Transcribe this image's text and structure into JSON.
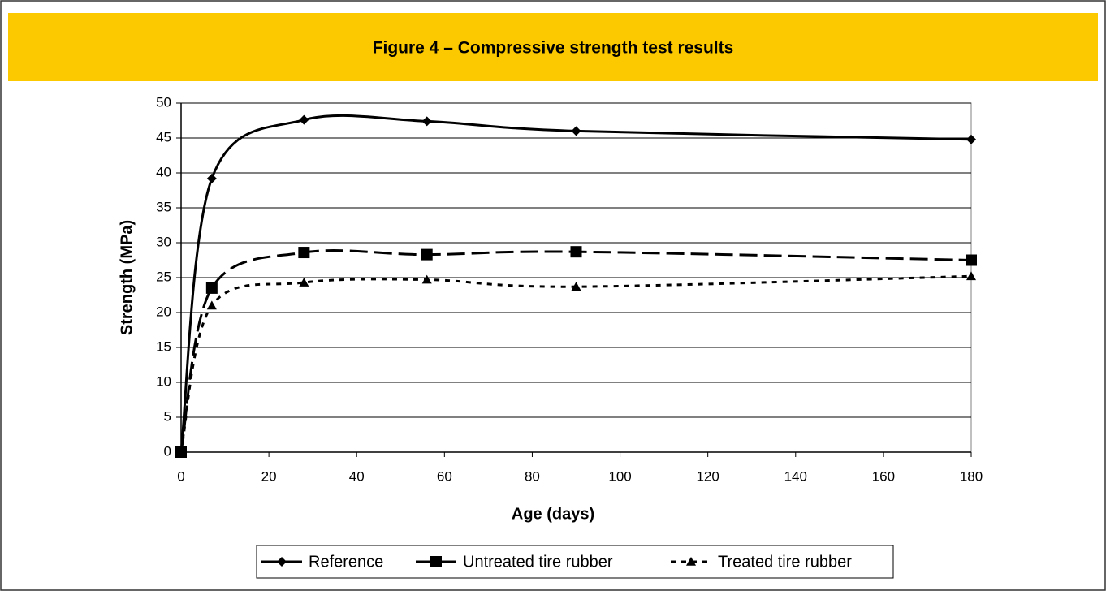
{
  "chart_data": {
    "type": "line",
    "title": "Figure 4 – Compressive strength test results",
    "x_label": "Age (days)",
    "y_label": "Strength (MPa)",
    "x": [
      0,
      7,
      28,
      56,
      90,
      180
    ],
    "series": [
      {
        "name": "Reference",
        "color": "#000000",
        "values": [
          0,
          39.2,
          47.6,
          47.4,
          46.0,
          44.8
        ]
      },
      {
        "name": "Untreated tire rubber",
        "color": "#000000",
        "values": [
          0,
          23.5,
          28.6,
          28.3,
          28.7,
          27.5
        ]
      },
      {
        "name": "Treated tire rubber",
        "color": "#000000",
        "values": [
          0,
          21.0,
          24.3,
          24.7,
          23.7,
          25.2
        ]
      }
    ],
    "xlim": [
      0,
      180
    ],
    "xticks": [
      0,
      20,
      40,
      60,
      80,
      100,
      120,
      140,
      160,
      180
    ],
    "ylim": [
      0,
      50
    ],
    "yticks": [
      0,
      5,
      10,
      15,
      20,
      25,
      30,
      35,
      40,
      45,
      50
    ],
    "grid": true
  }
}
